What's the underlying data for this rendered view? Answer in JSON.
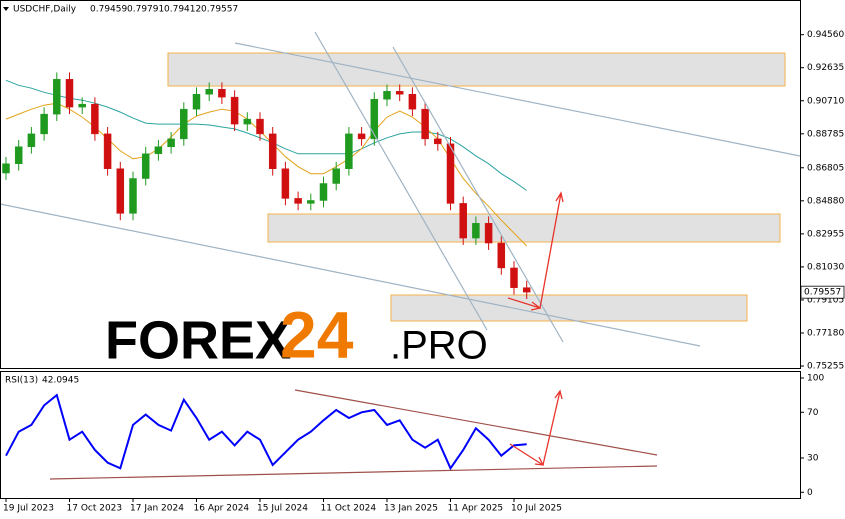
{
  "chart_data": [
    {
      "type": "candlestick",
      "symbol": "USDCHF,Daily",
      "header_ohlc": [
        0.79459,
        0.79791,
        0.79412,
        0.79557
      ],
      "open": [
        0.865,
        0.8704,
        0.8803,
        0.8878,
        0.8993,
        0.9196,
        0.9034,
        0.9051,
        0.8878,
        0.8675,
        0.8415,
        0.8618,
        0.8762,
        0.8803,
        0.8849,
        0.9022,
        0.9109,
        0.9138,
        0.9092,
        0.8935,
        0.8964,
        0.8878,
        0.8675,
        0.8502,
        0.8473,
        0.849,
        0.8589,
        0.8675,
        0.8878,
        0.8849,
        0.908,
        0.9126,
        0.9109,
        0.9022,
        0.8849,
        0.882,
        0.8473,
        0.8271,
        0.8357,
        0.8242,
        0.8097,
        0.7982
      ],
      "high": [
        0.8744,
        0.8843,
        0.8918,
        0.9033,
        0.9236,
        0.9236,
        0.9091,
        0.9091,
        0.8918,
        0.8715,
        0.8658,
        0.8802,
        0.8843,
        0.8889,
        0.9062,
        0.9149,
        0.9178,
        0.9178,
        0.9132,
        0.9004,
        0.9004,
        0.8918,
        0.8715,
        0.8542,
        0.853,
        0.8629,
        0.8715,
        0.8918,
        0.8918,
        0.912,
        0.9166,
        0.9166,
        0.9149,
        0.9062,
        0.8889,
        0.886,
        0.8513,
        0.8397,
        0.8397,
        0.8282,
        0.8137,
        0.8022
      ],
      "low": [
        0.861,
        0.8664,
        0.8763,
        0.8838,
        0.8953,
        0.8994,
        0.8994,
        0.8838,
        0.8635,
        0.8375,
        0.8375,
        0.8578,
        0.8722,
        0.8763,
        0.8809,
        0.8982,
        0.9069,
        0.9052,
        0.8895,
        0.8895,
        0.8838,
        0.8635,
        0.8462,
        0.8433,
        0.8433,
        0.845,
        0.8549,
        0.8635,
        0.8809,
        0.8809,
        0.904,
        0.9069,
        0.8982,
        0.8809,
        0.878,
        0.8433,
        0.8231,
        0.8231,
        0.8202,
        0.8057,
        0.7942,
        0.7916
      ],
      "close": [
        0.8704,
        0.8803,
        0.8878,
        0.8993,
        0.9196,
        0.9034,
        0.9051,
        0.8878,
        0.8675,
        0.8415,
        0.8618,
        0.8762,
        0.8803,
        0.8849,
        0.9022,
        0.9109,
        0.9138,
        0.9092,
        0.8935,
        0.8964,
        0.8878,
        0.8675,
        0.8502,
        0.8473,
        0.849,
        0.8589,
        0.8675,
        0.8878,
        0.8849,
        0.908,
        0.9126,
        0.9109,
        0.9022,
        0.8849,
        0.882,
        0.8473,
        0.8271,
        0.8357,
        0.8242,
        0.8097,
        0.7982,
        0.7956
      ],
      "up_color": "#1f9a1f",
      "down_color": "#d01010",
      "series": [
        {
          "color": "#2aa3a0",
          "values": [
            0.919,
            0.9161,
            0.9144,
            0.912,
            0.9103,
            0.9086,
            0.9074,
            0.9057,
            0.9034,
            0.9005,
            0.897,
            0.8941,
            0.8935,
            0.8935,
            0.8935,
            0.8935,
            0.893,
            0.8918,
            0.8907,
            0.8883,
            0.8855,
            0.8826,
            0.8791,
            0.8762,
            0.8762,
            0.8762,
            0.8762,
            0.8762,
            0.8791,
            0.8826,
            0.8855,
            0.8878,
            0.8889,
            0.8889,
            0.8878,
            0.8849,
            0.8803,
            0.875,
            0.8704,
            0.8646,
            0.86,
            0.8548
          ]
        },
        {
          "color": "#e3a21a",
          "values": [
            0.8964,
            0.8993,
            0.9022,
            0.9045,
            0.9057,
            0.9022,
            0.8976,
            0.8918,
            0.8849,
            0.8779,
            0.8733,
            0.8745,
            0.8791,
            0.886,
            0.8935,
            0.8982,
            0.9005,
            0.9022,
            0.9011,
            0.8964,
            0.8895,
            0.882,
            0.8745,
            0.8687,
            0.8646,
            0.8646,
            0.8687,
            0.8733,
            0.8791,
            0.8895,
            0.8976,
            0.9011,
            0.8976,
            0.8918,
            0.8849,
            0.8733,
            0.8618,
            0.8531,
            0.8456,
            0.8375,
            0.83,
            0.8225
          ]
        }
      ],
      "ylim": [
        0.7514,
        0.9658
      ],
      "yticks": [
        {
          "value": 0.9456,
          "label": "0.94560"
        },
        0.92635,
        {
          "value": 0.9071,
          "label": "0.90710"
        },
        0.88785,
        0.86805,
        {
          "value": 0.8488,
          "label": "0.84880"
        },
        0.82955,
        {
          "value": 0.8103,
          "label": "0.81030"
        },
        0.79105,
        {
          "value": 0.7718,
          "label": "0.77180"
        },
        0.75255
      ],
      "watermark": [
        "FOREX",
        "24",
        ".PRO"
      ]
    },
    {
      "type": "line",
      "title": "RSI(13)",
      "categories": [
        "19 Jul 2023",
        null,
        null,
        null,
        null,
        "17 Oct 2023",
        null,
        null,
        null,
        null,
        "17 Jan 2024",
        null,
        null,
        null,
        null,
        "16 Apr 2024",
        null,
        null,
        null,
        null,
        "15 Jul 2024",
        null,
        null,
        null,
        null,
        "11 Oct 2024",
        null,
        null,
        null,
        null,
        "13 Jan 2025",
        null,
        null,
        null,
        null,
        "11 Apr 2025",
        null,
        null,
        null,
        null,
        "10 Jul 2025",
        null
      ],
      "series": [
        {
          "color": "#0000ff",
          "values": [
            32,
            53,
            59,
            76,
            85,
            46,
            53,
            37,
            26,
            21,
            59,
            68,
            59,
            54,
            81,
            65,
            46,
            53,
            41,
            53,
            46,
            24,
            35,
            46,
            53,
            63,
            72,
            65,
            70,
            72,
            59,
            63,
            46,
            39,
            46,
            21,
            37,
            56,
            46,
            32,
            41,
            42.0945
          ]
        }
      ],
      "ylim": [
        -5,
        107
      ],
      "yticks": [
        100,
        70,
        30,
        0
      ]
    }
  ]
}
